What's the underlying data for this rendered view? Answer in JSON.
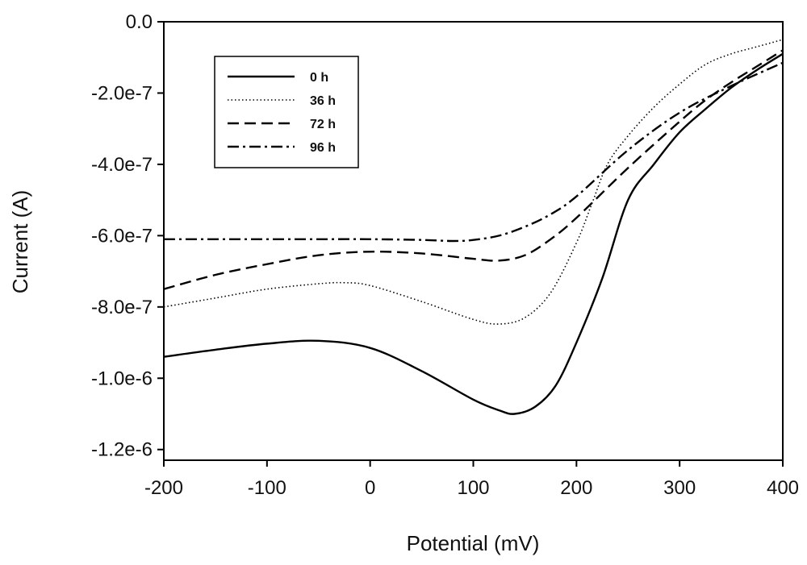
{
  "chart_data": {
    "type": "line",
    "title": "",
    "xlabel": "Potential (mV)",
    "ylabel": "Current (A)",
    "xlim": [
      -200,
      400
    ],
    "ylim": [
      -1.23e-06,
      0
    ],
    "xticks": [
      -200,
      -100,
      0,
      100,
      200,
      300,
      400
    ],
    "xtick_labels": [
      "-200",
      "-100",
      "0",
      "100",
      "200",
      "300",
      "400"
    ],
    "yticks": [
      0,
      -2e-07,
      -4e-07,
      -6e-07,
      -8e-07,
      -1e-06,
      -1.2e-06
    ],
    "ytick_labels": [
      "0.0",
      "-2.0e-7",
      "-4.0e-7",
      "-6.0e-7",
      "-8.0e-7",
      "-1.0e-6",
      "-1.2e-6"
    ],
    "grid": false,
    "legend": "top-left",
    "series": [
      {
        "name": "0 h",
        "dash": "solid",
        "x": [
          -200,
          -150,
          -100,
          -50,
          0,
          50,
          100,
          125,
          140,
          160,
          180,
          200,
          225,
          250,
          275,
          300,
          325,
          350,
          375,
          400
        ],
        "y": [
          -9.4e-07,
          -9.2e-07,
          -9.03e-07,
          -8.95e-07,
          -9.15e-07,
          -9.8e-07,
          -1.06e-06,
          -1.09e-06,
          -1.1e-06,
          -1.08e-06,
          -1.02e-06,
          -9e-07,
          -7.2e-07,
          -5e-07,
          -4e-07,
          -3.1e-07,
          -2.45e-07,
          -1.85e-07,
          -1.35e-07,
          -9e-08
        ]
      },
      {
        "name": "36 h",
        "dash": "dotted",
        "x": [
          -200,
          -150,
          -100,
          -50,
          -25,
          0,
          50,
          100,
          125,
          150,
          175,
          200,
          215,
          230,
          250,
          275,
          300,
          325,
          350,
          375,
          400
        ],
        "y": [
          -8e-07,
          -7.75e-07,
          -7.5e-07,
          -7.35e-07,
          -7.32e-07,
          -7.4e-07,
          -7.85e-07,
          -8.35e-07,
          -8.48e-07,
          -8.3e-07,
          -7.6e-07,
          -6.2e-07,
          -5.1e-07,
          -4e-07,
          -3.2e-07,
          -2.4e-07,
          -1.75e-07,
          -1.2e-07,
          -9e-08,
          -7e-08,
          -5e-08
        ]
      },
      {
        "name": "72 h",
        "dash": "dashed",
        "x": [
          -200,
          -150,
          -100,
          -50,
          0,
          50,
          100,
          125,
          150,
          175,
          200,
          250,
          300,
          325,
          350,
          375,
          400
        ],
        "y": [
          -7.5e-07,
          -7.1e-07,
          -6.8e-07,
          -6.55e-07,
          -6.45e-07,
          -6.5e-07,
          -6.65e-07,
          -6.7e-07,
          -6.55e-07,
          -6.1e-07,
          -5.5e-07,
          -4.1e-07,
          -2.8e-07,
          -2.2e-07,
          -1.7e-07,
          -1.25e-07,
          -8e-08
        ]
      },
      {
        "name": "96 h",
        "dash": "dashdot",
        "x": [
          -200,
          -150,
          -100,
          -50,
          0,
          50,
          80,
          100,
          125,
          150,
          175,
          200,
          250,
          300,
          350,
          400
        ],
        "y": [
          -6.1e-07,
          -6.1e-07,
          -6.1e-07,
          -6.1e-07,
          -6.1e-07,
          -6.12e-07,
          -6.15e-07,
          -6.12e-07,
          -6e-07,
          -5.75e-07,
          -5.4e-07,
          -4.9e-07,
          -3.6e-07,
          -2.55e-07,
          -1.8e-07,
          -1.15e-07
        ]
      }
    ]
  }
}
